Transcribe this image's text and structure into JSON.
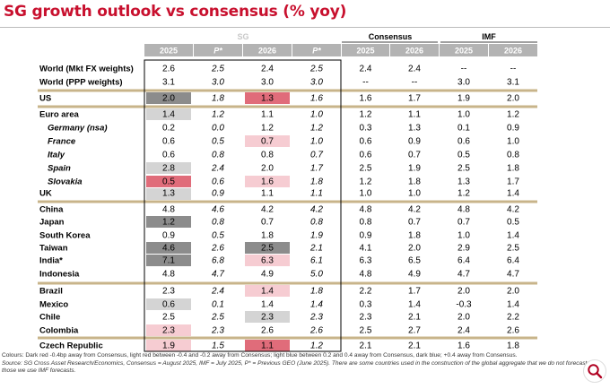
{
  "title": "SG growth outlook vs consensus (% yoy)",
  "header": {
    "groups": [
      {
        "label": "SG"
      },
      {
        "label": "Consensus"
      },
      {
        "label": "IMF"
      }
    ],
    "columns": [
      "2025",
      "P*",
      "2026",
      "P*",
      "2025",
      "2026",
      "2025",
      "2026"
    ]
  },
  "colors": {
    "header_bg": "#b3b3b3",
    "separator": "#c8b48a",
    "dark_red": "#e06c7a",
    "light_red": "#f6ccd2",
    "light_blue": "#d4d4d4",
    "dark_blue": "#8c8c8c",
    "title": "#c8102e"
  },
  "chart_data": {
    "type": "table",
    "title": "SG growth outlook vs consensus (% yoy)",
    "columns": [
      "SG 2025",
      "SG 2025 P*",
      "SG 2026",
      "SG 2026 P*",
      "Consensus 2025",
      "Consensus 2026",
      "IMF 2025",
      "IMF 2026"
    ],
    "rows": [
      {
        "label": "World (Mkt FX weights)",
        "values": [
          "2.6",
          "2.5",
          "2.4",
          "2.5",
          "2.4",
          "2.4",
          "--",
          "--"
        ],
        "shade": [
          "",
          "",
          "",
          "",
          "",
          "",
          "",
          ""
        ]
      },
      {
        "label": "World (PPP weights)",
        "values": [
          "3.1",
          "3.0",
          "3.0",
          "3.0",
          "--",
          "--",
          "3.0",
          "3.1"
        ],
        "shade": [
          "",
          "",
          "",
          "",
          "",
          "",
          "",
          ""
        ]
      },
      {
        "label": "US",
        "values": [
          "2.0",
          "1.8",
          "1.3",
          "1.6",
          "1.6",
          "1.7",
          "1.9",
          "2.0"
        ],
        "shade": [
          "db",
          "",
          "dr",
          "",
          "",
          "",
          "",
          ""
        ],
        "sep_before": true
      },
      {
        "label": "Euro area",
        "values": [
          "1.4",
          "1.2",
          "1.1",
          "1.0",
          "1.2",
          "1.1",
          "1.0",
          "1.2"
        ],
        "shade": [
          "lb",
          "",
          "",
          "",
          "",
          "",
          "",
          ""
        ],
        "sep_before": true
      },
      {
        "label": "Germany (nsa)",
        "sub": true,
        "values": [
          "0.2",
          "0.0",
          "1.2",
          "1.2",
          "0.3",
          "1.3",
          "0.1",
          "0.9"
        ],
        "shade": [
          "",
          "",
          "",
          "",
          "",
          "",
          "",
          ""
        ]
      },
      {
        "label": "France",
        "sub": true,
        "values": [
          "0.6",
          "0.5",
          "0.7",
          "1.0",
          "0.6",
          "0.9",
          "0.6",
          "1.0"
        ],
        "shade": [
          "",
          "",
          "lr",
          "",
          "",
          "",
          "",
          ""
        ]
      },
      {
        "label": "Italy",
        "sub": true,
        "values": [
          "0.6",
          "0.8",
          "0.8",
          "0.7",
          "0.6",
          "0.7",
          "0.5",
          "0.8"
        ],
        "shade": [
          "",
          "",
          "",
          "",
          "",
          "",
          "",
          ""
        ]
      },
      {
        "label": "Spain",
        "sub": true,
        "values": [
          "2.8",
          "2.4",
          "2.0",
          "1.7",
          "2.5",
          "1.9",
          "2.5",
          "1.8"
        ],
        "shade": [
          "lb",
          "",
          "",
          "",
          "",
          "",
          "",
          ""
        ]
      },
      {
        "label": "Slovakia",
        "sub": true,
        "values": [
          "0.5",
          "0.6",
          "1.6",
          "1.8",
          "1.2",
          "1.8",
          "1.3",
          "1.7"
        ],
        "shade": [
          "dr",
          "",
          "lr",
          "",
          "",
          "",
          "",
          ""
        ]
      },
      {
        "label": "UK",
        "values": [
          "1.3",
          "0.9",
          "1.1",
          "1.1",
          "1.0",
          "1.0",
          "1.2",
          "1.4"
        ],
        "shade": [
          "lb",
          "",
          "",
          "",
          "",
          "",
          "",
          ""
        ]
      },
      {
        "label": "China",
        "values": [
          "4.8",
          "4.6",
          "4.2",
          "4.2",
          "4.8",
          "4.2",
          "4.8",
          "4.2"
        ],
        "shade": [
          "",
          "",
          "",
          "",
          "",
          "",
          "",
          ""
        ],
        "sep_before": true
      },
      {
        "label": "Japan",
        "values": [
          "1.2",
          "0.8",
          "0.7",
          "0.8",
          "0.8",
          "0.7",
          "0.7",
          "0.5"
        ],
        "shade": [
          "db",
          "",
          "",
          "",
          "",
          "",
          "",
          ""
        ]
      },
      {
        "label": "South Korea",
        "values": [
          "0.9",
          "0.5",
          "1.8",
          "1.9",
          "0.9",
          "1.8",
          "1.0",
          "1.4"
        ],
        "shade": [
          "",
          "",
          "",
          "",
          "",
          "",
          "",
          ""
        ]
      },
      {
        "label": "Taiwan",
        "values": [
          "4.6",
          "2.6",
          "2.5",
          "2.1",
          "4.1",
          "2.0",
          "2.9",
          "2.5"
        ],
        "shade": [
          "db",
          "",
          "db",
          "",
          "",
          "",
          "",
          ""
        ]
      },
      {
        "label": "India*",
        "values": [
          "7.1",
          "6.8",
          "6.3",
          "6.1",
          "6.3",
          "6.5",
          "6.4",
          "6.4"
        ],
        "shade": [
          "db",
          "",
          "lr",
          "",
          "",
          "",
          "",
          ""
        ]
      },
      {
        "label": "Indonesia",
        "values": [
          "4.8",
          "4.7",
          "4.9",
          "5.0",
          "4.8",
          "4.9",
          "4.7",
          "4.7"
        ],
        "shade": [
          "",
          "",
          "",
          "",
          "",
          "",
          "",
          ""
        ]
      },
      {
        "label": "Brazil",
        "values": [
          "2.3",
          "2.4",
          "1.4",
          "1.8",
          "2.2",
          "1.7",
          "2.0",
          "2.0"
        ],
        "shade": [
          "",
          "",
          "lr",
          "",
          "",
          "",
          "",
          ""
        ],
        "sep_before": true
      },
      {
        "label": "Mexico",
        "values": [
          "0.6",
          "0.1",
          "1.4",
          "1.4",
          "0.3",
          "1.4",
          "-0.3",
          "1.4"
        ],
        "shade": [
          "lb",
          "",
          "",
          "",
          "",
          "",
          "",
          ""
        ]
      },
      {
        "label": "Chile",
        "values": [
          "2.5",
          "2.5",
          "2.3",
          "2.3",
          "2.3",
          "2.1",
          "2.0",
          "2.2"
        ],
        "shade": [
          "",
          "",
          "lb",
          "",
          "",
          "",
          "",
          ""
        ]
      },
      {
        "label": "Colombia",
        "values": [
          "2.3",
          "2.3",
          "2.6",
          "2.6",
          "2.5",
          "2.7",
          "2.4",
          "2.6"
        ],
        "shade": [
          "lr",
          "",
          "",
          "",
          "",
          "",
          "",
          ""
        ]
      },
      {
        "label": "Czech Republic",
        "values": [
          "1.9",
          "1.5",
          "1.1",
          "1.2",
          "2.1",
          "2.1",
          "1.6",
          "1.8"
        ],
        "shade": [
          "lr",
          "",
          "dr",
          "",
          "",
          "",
          "",
          ""
        ],
        "sep_before": true
      }
    ]
  },
  "footnote": {
    "colours": "Colours: Dark red -0.4bp away from Consensus, light red between -0.4 and -0.2 away from Consensus; light blue between 0.2 and 0.4 away from Consensus, dark blue; +0.4 away from Consensus.",
    "source": "Source: SG Cross Asset Research/Economics, Consensus = August 2025, IMF = July 2025, P* = Previous GEO (June 2025). There are some countries used in the construction of the global aggregate that we do not forecast. For those we use IMF forecasts."
  }
}
